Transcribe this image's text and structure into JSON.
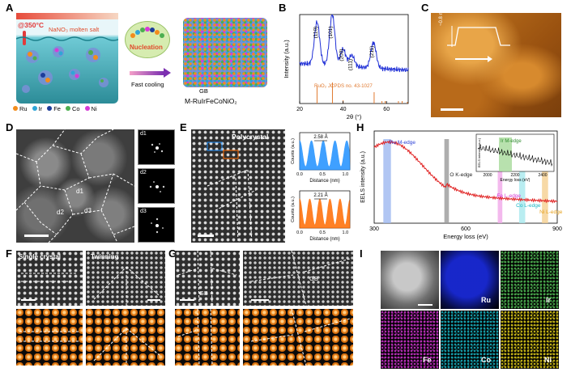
{
  "panels": {
    "A": "A",
    "B": "B",
    "C": "C",
    "D": "D",
    "E": "E",
    "F": "F",
    "G": "G",
    "H": "H",
    "I": "I"
  },
  "A": {
    "temperature": "@350°C",
    "molten_salt": "NaNO₃ molten salt",
    "nucleation": "Nucleation",
    "fast_cooling": "Fast cooling",
    "gb": "GB",
    "product": "M-RuIrFeCoNiO₂",
    "legend": [
      {
        "label": "Ru",
        "color": "#f28c1c"
      },
      {
        "label": "Ir",
        "color": "#2fa6d8"
      },
      {
        "label": "Fe",
        "color": "#1d3d9a"
      },
      {
        "label": "Co",
        "color": "#4caf50"
      },
      {
        "label": "Ni",
        "color": "#d63bd6"
      }
    ]
  },
  "chart_data": {
    "type": "line",
    "ylabel": "Intensity (a.u.)",
    "xlabel": "2θ (°)",
    "xticks": [
      "20",
      "40",
      "60"
    ],
    "xlim": [
      20,
      70
    ],
    "reference_label": "RuO₂ JCPDS no. 43-1027",
    "peaks": [
      {
        "label": "(110)",
        "x": 28
      },
      {
        "label": "(101)",
        "x": 35
      },
      {
        "label": "(200)",
        "x": 40
      },
      {
        "label": "(111)",
        "x": 44
      },
      {
        "label": "(211)",
        "x": 54
      }
    ],
    "reference_sticks": [
      28.0,
      35.1,
      40.0,
      54.3,
      57.9,
      59.4,
      65.5,
      67.2,
      69.6
    ],
    "series_color": "#1f2fd6",
    "reference_color": "#e07a30"
  },
  "C": {
    "step_label": "~0.8 nm"
  },
  "D": {
    "regions": [
      "d1",
      "d2",
      "d3"
    ],
    "ffts": [
      "d1",
      "d2",
      "d3"
    ]
  },
  "E": {
    "title": "Polycrystal",
    "plot1": {
      "spacing": "2.58 Å",
      "ylabel": "Counts (a.u.)",
      "xlabel": "Distance (nm)",
      "xticks": [
        "0.0",
        "0.5",
        "1.0"
      ],
      "color": "#1e90ff"
    },
    "plot2": {
      "spacing": "2.21 Å",
      "ylabel": "Counts (a.u.)",
      "xlabel": "Distance (nm)",
      "xticks": [
        "0.0",
        "0.5",
        "1.0"
      ],
      "color": "#ff6a00"
    }
  },
  "H": {
    "ylabel": "EELS intensity (a.u.)",
    "xlabel": "Energy loss (eV)",
    "xticks": [
      "300",
      "600",
      "900"
    ],
    "edges": [
      {
        "label": "Ru M-edge",
        "color": "#2a3fd6"
      },
      {
        "label": "O K-edge",
        "color": "#222222"
      },
      {
        "label": "Fe L-edge",
        "color": "#d63bd6"
      },
      {
        "label": "Co L-edge",
        "color": "#19b5c4"
      },
      {
        "label": "Ni L-edge",
        "color": "#e6a11c"
      }
    ],
    "inset": {
      "label": "Ir M-edge",
      "ylabel": "EELS intensity (a.u.)",
      "xlabel": "Energy loss (eV)",
      "xticks": [
        "2000",
        "2200",
        "2400"
      ]
    }
  },
  "F": {
    "single": "Single crystal",
    "twinning": "Twinning"
  },
  "G": {
    "gb1": "GB",
    "gb2": "GB"
  },
  "I": {
    "maps": [
      {
        "label": "Ru",
        "color": "#1a2be0"
      },
      {
        "label": "Ir",
        "color": "#4caf50"
      },
      {
        "label": "Fe",
        "color": "#c431c4"
      },
      {
        "label": "Co",
        "color": "#19b5c4"
      },
      {
        "label": "Ni",
        "color": "#d4c21a"
      }
    ]
  }
}
